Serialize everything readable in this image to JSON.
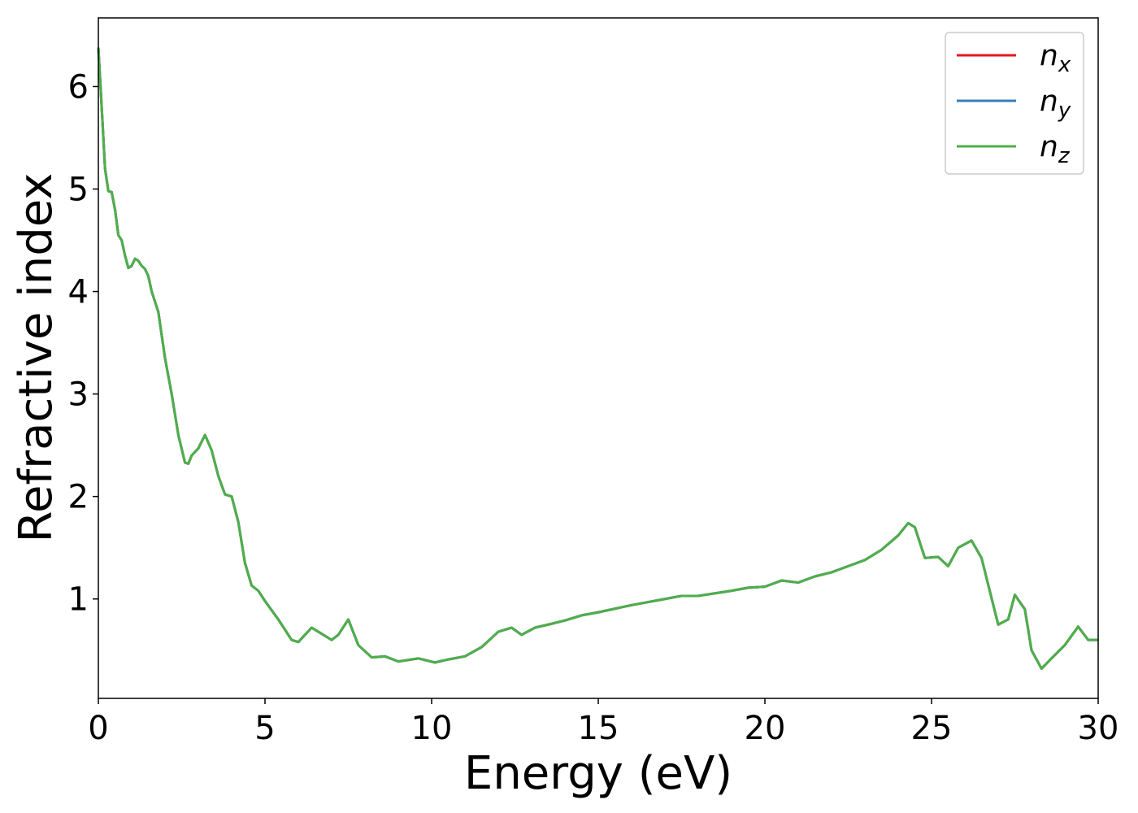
{
  "chart_data": {
    "type": "line",
    "xlabel": "Energy (eV)",
    "ylabel": "Refractive index",
    "xlim": [
      0,
      30
    ],
    "ylim": [
      0.03,
      6.67
    ],
    "xticks": [
      0,
      5,
      10,
      15,
      20,
      25,
      30
    ],
    "yticks": [
      1,
      2,
      3,
      4,
      5,
      6
    ],
    "legend": "upper right",
    "x": [
      0,
      0.1,
      0.2,
      0.3,
      0.4,
      0.5,
      0.6,
      0.7,
      0.8,
      0.9,
      1.0,
      1.1,
      1.2,
      1.3,
      1.4,
      1.5,
      1.6,
      1.8,
      2.0,
      2.2,
      2.4,
      2.6,
      2.7,
      2.8,
      3.0,
      3.2,
      3.4,
      3.6,
      3.8,
      4.0,
      4.2,
      4.4,
      4.6,
      4.8,
      5.0,
      5.4,
      5.8,
      6.0,
      6.4,
      6.6,
      7.0,
      7.2,
      7.5,
      7.8,
      8.2,
      8.6,
      9.0,
      9.4,
      9.6,
      10.1,
      10.5,
      11.0,
      11.5,
      12.0,
      12.4,
      12.7,
      13.1,
      13.5,
      14.0,
      14.5,
      15,
      16,
      17,
      17.5,
      18,
      19,
      19.5,
      20,
      20.5,
      21,
      21.5,
      22,
      22.5,
      23,
      23.5,
      24,
      24.3,
      24.5,
      24.8,
      25.2,
      25.5,
      25.8,
      26.2,
      26.5,
      27.0,
      27.3,
      27.5,
      27.8,
      28.0,
      28.3,
      28.6,
      29.0,
      29.4,
      29.7,
      30.0
    ],
    "series": [
      {
        "name": "nx",
        "color": "#e41a1c",
        "values": [
          6.38,
          5.8,
          5.2,
          4.98,
          4.97,
          4.8,
          4.55,
          4.5,
          4.35,
          4.23,
          4.25,
          4.32,
          4.3,
          4.25,
          4.22,
          4.15,
          4.0,
          3.8,
          3.35,
          3.0,
          2.6,
          2.33,
          2.32,
          2.4,
          2.47,
          2.6,
          2.45,
          2.2,
          2.02,
          2.0,
          1.75,
          1.35,
          1.13,
          1.08,
          0.98,
          0.8,
          0.6,
          0.58,
          0.72,
          0.68,
          0.6,
          0.65,
          0.8,
          0.55,
          0.43,
          0.44,
          0.39,
          0.41,
          0.42,
          0.38,
          0.41,
          0.44,
          0.53,
          0.68,
          0.72,
          0.65,
          0.72,
          0.75,
          0.79,
          0.84,
          0.87,
          0.94,
          1.0,
          1.03,
          1.03,
          1.08,
          1.11,
          1.12,
          1.18,
          1.16,
          1.22,
          1.26,
          1.32,
          1.38,
          1.48,
          1.62,
          1.74,
          1.7,
          1.4,
          1.41,
          1.32,
          1.5,
          1.57,
          1.4,
          0.75,
          0.8,
          1.04,
          0.9,
          0.5,
          0.32,
          0.42,
          0.55,
          0.73,
          0.6,
          0.6
        ]
      },
      {
        "name": "ny",
        "color": "#377eb8",
        "values": [
          6.38,
          5.8,
          5.2,
          4.98,
          4.97,
          4.8,
          4.55,
          4.5,
          4.35,
          4.23,
          4.25,
          4.32,
          4.3,
          4.25,
          4.22,
          4.15,
          4.0,
          3.8,
          3.35,
          3.0,
          2.6,
          2.33,
          2.32,
          2.4,
          2.47,
          2.6,
          2.45,
          2.2,
          2.02,
          2.0,
          1.75,
          1.35,
          1.13,
          1.08,
          0.98,
          0.8,
          0.6,
          0.58,
          0.72,
          0.68,
          0.6,
          0.65,
          0.8,
          0.55,
          0.43,
          0.44,
          0.39,
          0.41,
          0.42,
          0.38,
          0.41,
          0.44,
          0.53,
          0.68,
          0.72,
          0.65,
          0.72,
          0.75,
          0.79,
          0.84,
          0.87,
          0.94,
          1.0,
          1.03,
          1.03,
          1.08,
          1.11,
          1.12,
          1.18,
          1.16,
          1.22,
          1.26,
          1.32,
          1.38,
          1.48,
          1.62,
          1.74,
          1.7,
          1.4,
          1.41,
          1.32,
          1.5,
          1.57,
          1.4,
          0.75,
          0.8,
          1.04,
          0.9,
          0.5,
          0.32,
          0.42,
          0.55,
          0.73,
          0.6,
          0.6
        ]
      },
      {
        "name": "nz",
        "color": "#4daf4a",
        "values": [
          6.38,
          5.8,
          5.2,
          4.98,
          4.97,
          4.8,
          4.55,
          4.5,
          4.35,
          4.23,
          4.25,
          4.32,
          4.3,
          4.25,
          4.22,
          4.15,
          4.0,
          3.8,
          3.35,
          3.0,
          2.6,
          2.33,
          2.32,
          2.4,
          2.47,
          2.6,
          2.45,
          2.2,
          2.02,
          2.0,
          1.75,
          1.35,
          1.13,
          1.08,
          0.98,
          0.8,
          0.6,
          0.58,
          0.72,
          0.68,
          0.6,
          0.65,
          0.8,
          0.55,
          0.43,
          0.44,
          0.39,
          0.41,
          0.42,
          0.38,
          0.41,
          0.44,
          0.53,
          0.68,
          0.72,
          0.65,
          0.72,
          0.75,
          0.79,
          0.84,
          0.87,
          0.94,
          1.0,
          1.03,
          1.03,
          1.08,
          1.11,
          1.12,
          1.18,
          1.16,
          1.22,
          1.26,
          1.32,
          1.38,
          1.48,
          1.62,
          1.74,
          1.7,
          1.4,
          1.41,
          1.32,
          1.5,
          1.57,
          1.4,
          0.75,
          0.8,
          1.04,
          0.9,
          0.5,
          0.32,
          0.42,
          0.55,
          0.73,
          0.6,
          0.6
        ]
      }
    ]
  }
}
